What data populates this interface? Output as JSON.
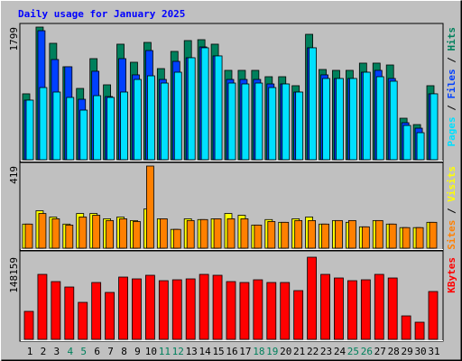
{
  "chart_data": {
    "type": "bar",
    "title": "Daily usage for January 2025",
    "categories": [
      "1",
      "2",
      "3",
      "4",
      "5",
      "6",
      "7",
      "8",
      "9",
      "10",
      "11",
      "12",
      "13",
      "14",
      "15",
      "16",
      "17",
      "18",
      "19",
      "20",
      "21",
      "22",
      "23",
      "24",
      "25",
      "26",
      "27",
      "28",
      "29",
      "30",
      "31"
    ],
    "category_colors": [
      "#000000",
      "#000000",
      "#000000",
      "#00805c",
      "#00805c",
      "#000000",
      "#000000",
      "#000000",
      "#000000",
      "#000000",
      "#00805c",
      "#00805c",
      "#000000",
      "#000000",
      "#000000",
      "#000000",
      "#000000",
      "#00805c",
      "#00805c",
      "#000000",
      "#000000",
      "#000000",
      "#000000",
      "#000000",
      "#00805c",
      "#00805c",
      "#000000",
      "#000000",
      "#000000",
      "#000000",
      "#000000"
    ],
    "legend_separator": "/",
    "panels": [
      {
        "ylim": [
          0,
          1799
        ],
        "yticks": [
          1799
        ],
        "series": [
          {
            "name": "Hits",
            "color": "#00805c",
            "values": [
              894,
              1799,
              1579,
              1261,
              967,
              1371,
              1016,
              1567,
              1322,
              1591,
              1236,
              1469,
              1616,
              1628,
              1567,
              1212,
              1212,
              1212,
              1126,
              1126,
              1004,
              1701,
              1224,
              1212,
              1212,
              1310,
              1310,
              1285,
              563,
              477,
              1004
            ]
          },
          {
            "name": "Files",
            "color": "#0040ff",
            "values": [
              808,
              1750,
              1359,
              1261,
              820,
              1200,
              857,
              1371,
              1151,
              1481,
              1089,
              1334,
              1383,
              1530,
              1408,
              1089,
              1089,
              1089,
              1028,
              1028,
              918,
              1518,
              1151,
              1102,
              1102,
              1187,
              1212,
              1102,
              502,
              428,
              894
            ]
          },
          {
            "name": "Pages",
            "color": "#00e0ff",
            "values": [
              808,
              979,
              918,
              845,
              673,
              869,
              845,
              918,
              1089,
              1138,
              1040,
              1187,
              1383,
              1518,
              1408,
              1040,
              1028,
              1040,
              979,
              1028,
              918,
              1518,
              1102,
              1102,
              1102,
              1187,
              1126,
              1065,
              465,
              367,
              894
            ]
          }
        ]
      },
      {
        "ylim": [
          0,
          419
        ],
        "yticks": [
          419
        ],
        "series": [
          {
            "name": "Visits",
            "color": "#ffff00",
            "values": [
              123,
              191,
              159,
              123,
              177,
              177,
              150,
              159,
              141,
              200,
              150,
              96,
              150,
              146,
              150,
              177,
              168,
              118,
              146,
              132,
              150,
              159,
              123,
              141,
              132,
              109,
              141,
              123,
              105,
              105,
              132
            ]
          },
          {
            "name": "Sites",
            "color": "#ff8000",
            "values": [
              123,
              177,
              150,
              118,
              159,
              168,
              141,
              150,
              136,
              419,
              150,
              96,
              141,
              146,
              150,
              150,
              150,
              118,
              136,
              132,
              141,
              141,
              123,
              141,
              141,
              109,
              141,
              123,
              105,
              105,
              132
            ]
          }
        ]
      },
      {
        "ylim": [
          0,
          148159
        ],
        "yticks": [
          148159
        ],
        "series": [
          {
            "name": "KBytes",
            "color": "#ff0000",
            "values": [
              50468,
              117216,
              104192,
              94424,
              66748,
              102564,
              84656,
              112332,
              109076,
              115588,
              105820,
              107448,
              109076,
              117216,
              115588,
              104192,
              102564,
              107448,
              102564,
              102564,
              87912,
              148159,
              117216,
              110704,
              105820,
              107448,
              117216,
              110704,
              42328,
              30932,
              86284
            ]
          }
        ]
      }
    ]
  }
}
